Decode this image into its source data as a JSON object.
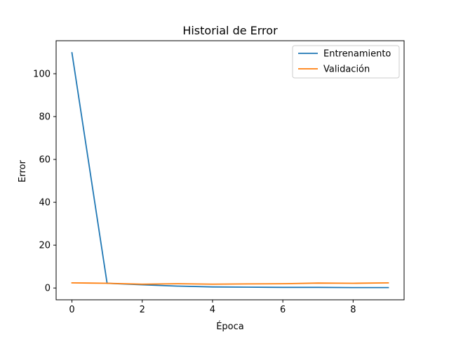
{
  "chart_data": {
    "type": "line",
    "title": "Historial de Error",
    "xlabel": "Época",
    "ylabel": "Error",
    "xlim": [
      -0.45,
      9.45
    ],
    "ylim": [
      -5.5,
      115.4
    ],
    "xticks": [
      0,
      2,
      4,
      6,
      8
    ],
    "yticks": [
      0,
      20,
      40,
      60,
      80,
      100
    ],
    "legend_position": "upper right",
    "grid": false,
    "x": [
      0,
      1,
      2,
      3,
      4,
      5,
      6,
      7,
      8,
      9
    ],
    "series": [
      {
        "name": "Entrenamiento",
        "color": "#1f77b4",
        "values": [
          109.8,
          2.2,
          1.5,
          0.9,
          0.5,
          0.4,
          0.3,
          0.3,
          0.2,
          0.2
        ]
      },
      {
        "name": "Validación",
        "color": "#ff7f0e",
        "values": [
          2.4,
          2.2,
          1.8,
          2.0,
          1.8,
          1.9,
          2.0,
          2.3,
          2.2,
          2.4
        ]
      }
    ]
  }
}
